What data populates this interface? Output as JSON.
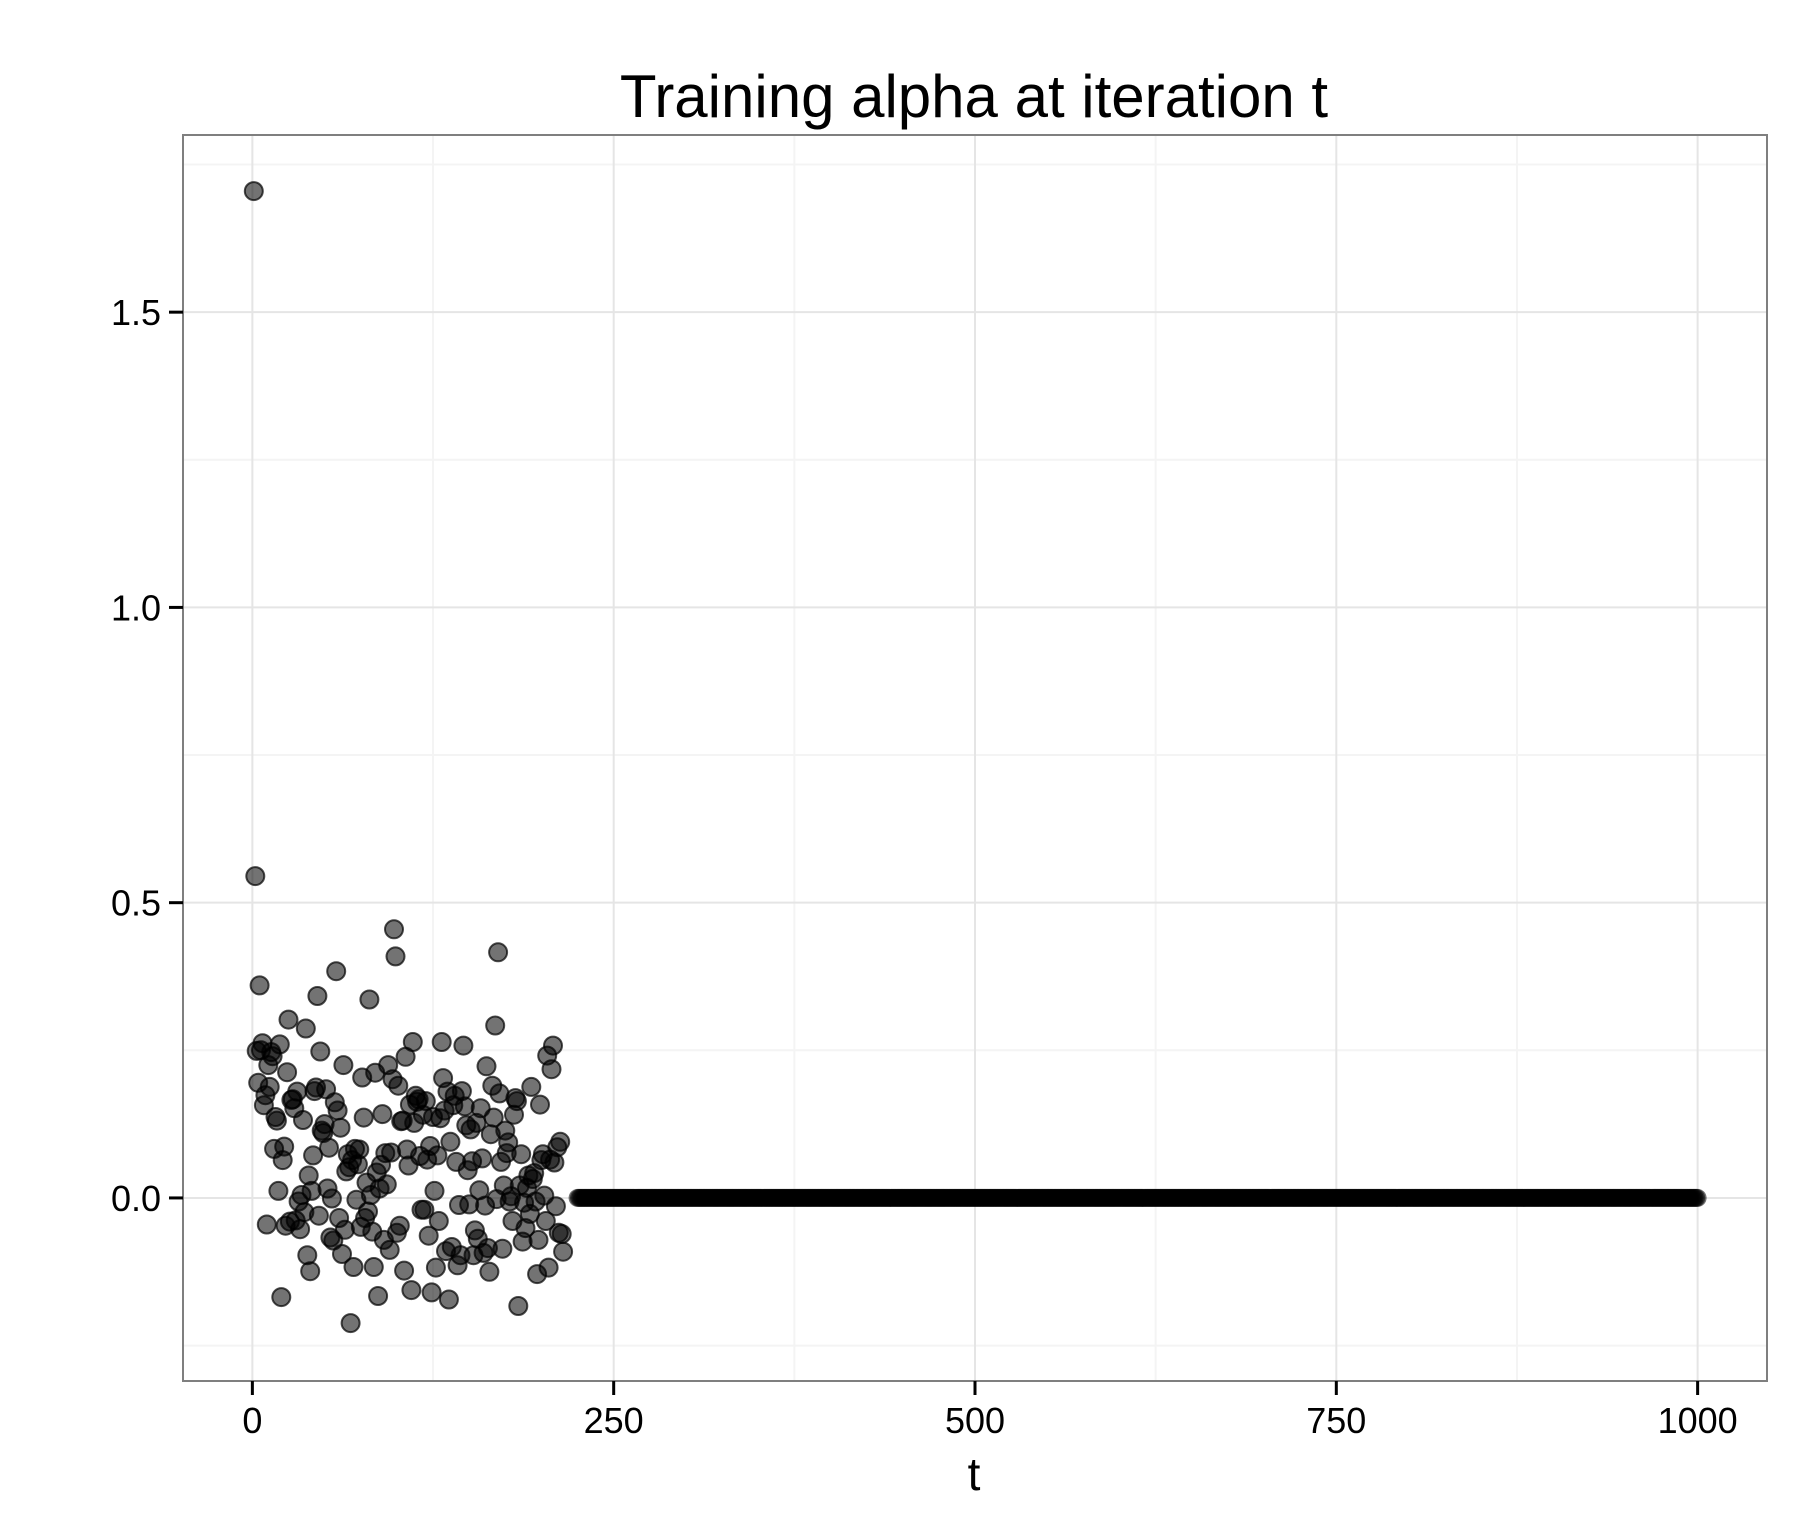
{
  "chart_data": {
    "type": "scatter",
    "title": "Training alpha at iteration t",
    "xlabel": "t",
    "ylabel": "",
    "xlim": [
      -48,
      1048
    ],
    "ylim": [
      -0.31,
      1.8
    ],
    "x_ticks": [
      0,
      250,
      500,
      750,
      1000
    ],
    "x_tick_labels": [
      "0",
      "250",
      "500",
      "750",
      "1000"
    ],
    "y_ticks": [
      0.0,
      0.5,
      1.0,
      1.5
    ],
    "y_tick_labels": [
      "0.0",
      "0.5",
      "1.0",
      "1.5"
    ],
    "grid": true,
    "point_color": "#000000",
    "point_opacity": 0.55,
    "series": [
      {
        "points": [
          [
            1,
            1.705
          ],
          [
            2,
            0.545
          ],
          [
            3,
            0.249
          ],
          [
            4,
            0.195
          ],
          [
            5,
            0.36
          ],
          [
            6,
            0.25
          ],
          [
            7,
            0.262
          ],
          [
            8,
            0.157
          ],
          [
            9,
            0.174
          ],
          [
            10,
            -0.045
          ],
          [
            11,
            0.225
          ],
          [
            12,
            0.188
          ],
          [
            13,
            0.247
          ],
          [
            14,
            0.24
          ],
          [
            15,
            0.083
          ],
          [
            16,
            0.137
          ],
          [
            17,
            0.131
          ],
          [
            18,
            0.012
          ],
          [
            19,
            0.26
          ],
          [
            20,
            -0.168
          ],
          [
            21,
            0.064
          ],
          [
            22,
            0.087
          ],
          [
            23,
            -0.047
          ],
          [
            24,
            0.213
          ],
          [
            25,
            0.302
          ],
          [
            26,
            -0.04
          ],
          [
            27,
            0.166
          ],
          [
            28,
            0.167
          ],
          [
            29,
            0.152
          ],
          [
            30,
            -0.038
          ],
          [
            31,
            0.18
          ],
          [
            32,
            -0.006
          ],
          [
            33,
            -0.053
          ],
          [
            34,
            0.005
          ],
          [
            35,
            0.132
          ],
          [
            36,
            -0.024
          ],
          [
            37,
            0.287
          ],
          [
            38,
            -0.097
          ],
          [
            39,
            0.038
          ],
          [
            40,
            -0.124
          ],
          [
            41,
            0.012
          ],
          [
            42,
            0.072
          ],
          [
            43,
            0.181
          ],
          [
            44,
            0.187
          ],
          [
            45,
            0.342
          ],
          [
            46,
            -0.03
          ],
          [
            47,
            0.248
          ],
          [
            48,
            0.114
          ],
          [
            49,
            0.11
          ],
          [
            50,
            0.125
          ],
          [
            51,
            0.184
          ],
          [
            52,
            0.016
          ],
          [
            53,
            0.085
          ],
          [
            54,
            -0.067
          ],
          [
            55,
            -0.001
          ],
          [
            56,
            -0.072
          ],
          [
            57,
            0.162
          ],
          [
            58,
            0.384
          ],
          [
            59,
            0.148
          ],
          [
            60,
            -0.034
          ],
          [
            61,
            0.119
          ],
          [
            62,
            -0.095
          ],
          [
            63,
            0.225
          ],
          [
            64,
            -0.054
          ],
          [
            65,
            0.045
          ],
          [
            66,
            0.074
          ],
          [
            67,
            0.052
          ],
          [
            68,
            -0.212
          ],
          [
            69,
            0.064
          ],
          [
            70,
            -0.117
          ],
          [
            71,
            0.083
          ],
          [
            72,
            -0.003
          ],
          [
            73,
            0.057
          ],
          [
            74,
            0.082
          ],
          [
            75,
            -0.049
          ],
          [
            76,
            0.204
          ],
          [
            77,
            0.136
          ],
          [
            78,
            -0.034
          ],
          [
            79,
            0.026
          ],
          [
            80,
            -0.023
          ],
          [
            81,
            0.336
          ],
          [
            82,
            0.005
          ],
          [
            83,
            -0.057
          ],
          [
            84,
            -0.117
          ],
          [
            85,
            0.212
          ],
          [
            86,
            0.043
          ],
          [
            87,
            -0.166
          ],
          [
            88,
            0.016
          ],
          [
            89,
            0.056
          ],
          [
            90,
            0.142
          ],
          [
            91,
            -0.071
          ],
          [
            92,
            0.076
          ],
          [
            93,
            0.023
          ],
          [
            94,
            0.225
          ],
          [
            95,
            -0.088
          ],
          [
            96,
            0.077
          ],
          [
            97,
            0.201
          ],
          [
            98,
            0.455
          ],
          [
            99,
            0.409
          ],
          [
            100,
            -0.059
          ],
          [
            101,
            0.19
          ],
          [
            102,
            -0.047
          ],
          [
            103,
            0.13
          ],
          [
            104,
            0.131
          ],
          [
            105,
            -0.123
          ],
          [
            106,
            0.239
          ],
          [
            107,
            0.082
          ],
          [
            108,
            0.055
          ],
          [
            109,
            0.158
          ],
          [
            110,
            -0.156
          ],
          [
            111,
            0.264
          ],
          [
            112,
            0.127
          ],
          [
            113,
            0.173
          ],
          [
            114,
            0.163
          ],
          [
            115,
            0.167
          ],
          [
            116,
            0.071
          ],
          [
            117,
            -0.02
          ],
          [
            118,
            0.141
          ],
          [
            119,
            -0.02
          ],
          [
            120,
            0.164
          ],
          [
            121,
            0.065
          ],
          [
            122,
            -0.064
          ],
          [
            123,
            0.088
          ],
          [
            124,
            -0.16
          ],
          [
            125,
            0.137
          ],
          [
            126,
            0.012
          ],
          [
            127,
            -0.118
          ],
          [
            128,
            0.072
          ],
          [
            129,
            -0.039
          ],
          [
            130,
            0.135
          ],
          [
            131,
            0.264
          ],
          [
            132,
            0.203
          ],
          [
            133,
            0.148
          ],
          [
            134,
            -0.09
          ],
          [
            135,
            0.18
          ],
          [
            136,
            -0.172
          ],
          [
            137,
            0.095
          ],
          [
            138,
            -0.083
          ],
          [
            139,
            0.157
          ],
          [
            140,
            0.173
          ],
          [
            141,
            0.061
          ],
          [
            142,
            -0.114
          ],
          [
            143,
            -0.012
          ],
          [
            144,
            -0.097
          ],
          [
            145,
            0.181
          ],
          [
            146,
            0.258
          ],
          [
            147,
            0.155
          ],
          [
            148,
            0.123
          ],
          [
            149,
            0.047
          ],
          [
            150,
            -0.011
          ],
          [
            151,
            0.116
          ],
          [
            152,
            0.062
          ],
          [
            153,
            -0.097
          ],
          [
            154,
            -0.055
          ],
          [
            155,
            0.127
          ],
          [
            156,
            -0.069
          ],
          [
            157,
            0.013
          ],
          [
            158,
            0.152
          ],
          [
            159,
            0.067
          ],
          [
            160,
            -0.093
          ],
          [
            161,
            -0.013
          ],
          [
            162,
            0.223
          ],
          [
            163,
            -0.085
          ],
          [
            164,
            -0.125
          ],
          [
            165,
            0.108
          ],
          [
            166,
            0.19
          ],
          [
            167,
            0.136
          ],
          [
            168,
            0.292
          ],
          [
            169,
            -0.002
          ],
          [
            170,
            0.416
          ],
          [
            171,
            0.177
          ],
          [
            172,
            0.061
          ],
          [
            173,
            -0.086
          ],
          [
            174,
            0.021
          ],
          [
            175,
            0.114
          ],
          [
            176,
            0.076
          ],
          [
            177,
            0.094
          ],
          [
            178,
            -0.006
          ],
          [
            179,
            0.003
          ],
          [
            180,
            -0.039
          ],
          [
            181,
            0.141
          ],
          [
            182,
            0.169
          ],
          [
            183,
            0.164
          ],
          [
            184,
            -0.183
          ],
          [
            185,
            0.021
          ],
          [
            186,
            0.074
          ],
          [
            187,
            -0.074
          ],
          [
            188,
            -0.008
          ],
          [
            189,
            -0.051
          ],
          [
            190,
            0.017
          ],
          [
            191,
            0.038
          ],
          [
            192,
            -0.027
          ],
          [
            193,
            0.188
          ],
          [
            194,
            0.032
          ],
          [
            195,
            0.042
          ],
          [
            196,
            -0.006
          ],
          [
            197,
            -0.129
          ],
          [
            198,
            -0.071
          ],
          [
            199,
            0.158
          ],
          [
            200,
            0.064
          ],
          [
            201,
            0.074
          ],
          [
            202,
            0.004
          ],
          [
            203,
            -0.039
          ],
          [
            204,
            0.241
          ],
          [
            205,
            -0.118
          ],
          [
            206,
            0.065
          ],
          [
            207,
            0.218
          ],
          [
            208,
            0.258
          ],
          [
            209,
            0.06
          ],
          [
            210,
            -0.014
          ],
          [
            211,
            0.086
          ],
          [
            212,
            -0.059
          ],
          [
            213,
            0.095
          ],
          [
            214,
            -0.061
          ],
          [
            215,
            -0.091
          ]
        ],
        "constant_segment": {
          "x_start": 225,
          "x_end": 1000,
          "y": 0.0
        }
      }
    ]
  }
}
